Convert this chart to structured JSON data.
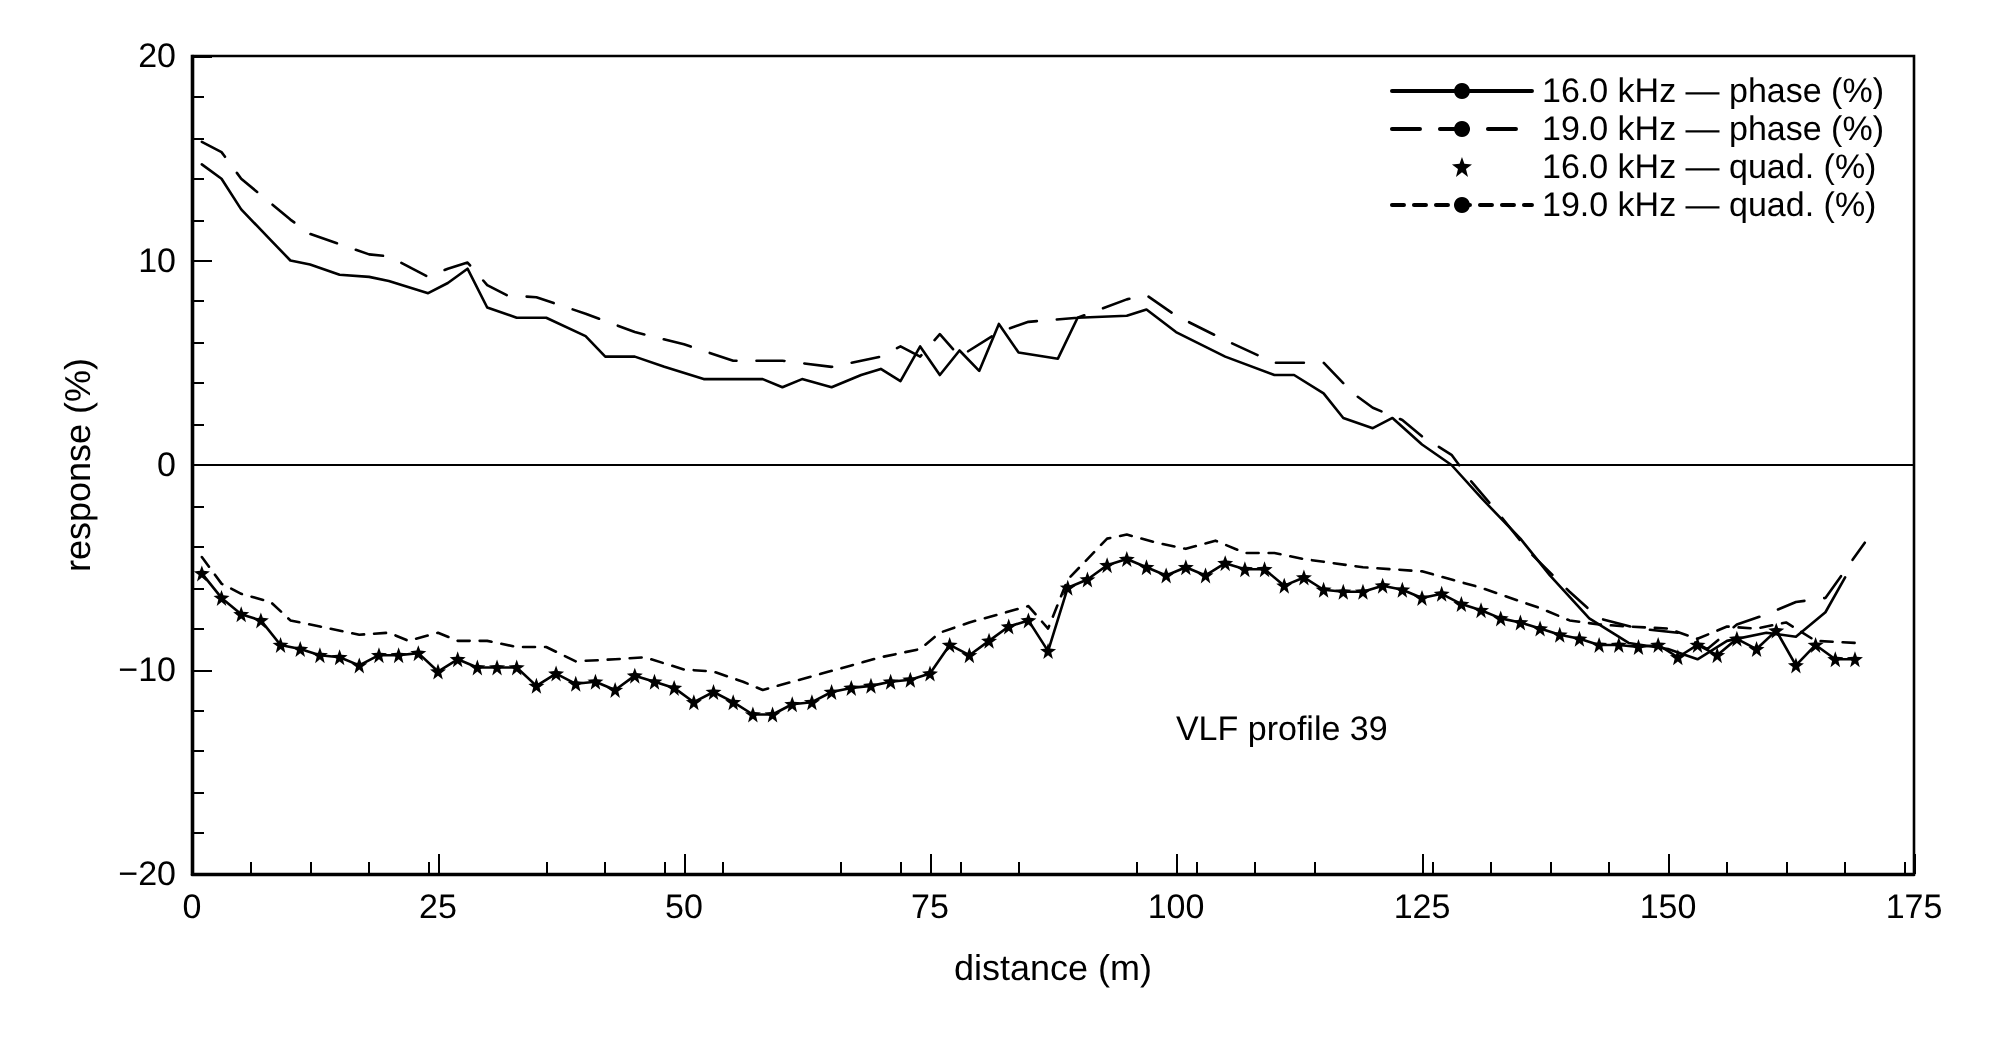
{
  "chart_data": {
    "type": "line",
    "xlabel": "distance (m)",
    "ylabel": "response (%)",
    "xlim": [
      0,
      175
    ],
    "xticks": [
      0,
      25,
      50,
      75,
      100,
      125,
      150,
      175
    ],
    "ylim": [
      -20,
      20
    ],
    "yticks": [
      -20,
      -10,
      0,
      10,
      20
    ],
    "grid": false,
    "legend": "top right",
    "annotations": [
      "VLF profile 39"
    ],
    "ref_lines": [
      {
        "axis": "y",
        "value": 0,
        "color": "#000000"
      }
    ],
    "series": [
      {
        "name": "16.0 kHz — phase (%)",
        "color": "#000000",
        "line_style": "solid",
        "marker": "none",
        "x": [
          1,
          3,
          5,
          8,
          10,
          12,
          15,
          18,
          20,
          24,
          26,
          28,
          30,
          33,
          36,
          40,
          42,
          45,
          48,
          52,
          55,
          58,
          60,
          62,
          65,
          68,
          70,
          72,
          74,
          76,
          78,
          80,
          82,
          84,
          88,
          90,
          95,
          97,
          100,
          105,
          110,
          112,
          115,
          117,
          120,
          122,
          125,
          128,
          131,
          135,
          138,
          142,
          146,
          150,
          153,
          156,
          160,
          163,
          166,
          168
        ],
        "values": [
          14.7,
          14,
          12.5,
          11,
          10,
          9.8,
          9.3,
          9.2,
          9,
          8.4,
          8.9,
          9.6,
          7.7,
          7.2,
          7.2,
          6.3,
          5.3,
          5.3,
          4.8,
          4.2,
          4.2,
          4.2,
          3.8,
          4.2,
          3.8,
          4.4,
          4.7,
          4.1,
          5.8,
          4.4,
          5.6,
          4.6,
          6.9,
          5.5,
          5.2,
          7.2,
          7.3,
          7.6,
          6.5,
          5.3,
          4.4,
          4.4,
          3.5,
          2.3,
          1.8,
          2.3,
          1,
          0,
          -1.6,
          -3.6,
          -5.4,
          -7.5,
          -8.7,
          -9,
          -9.5,
          -8.6,
          -8.2,
          -8.4,
          -7.2,
          -5.5
        ]
      },
      {
        "name": "19.0 kHz — phase (%)",
        "color": "#000000",
        "line_style": "dashed",
        "marker": "none",
        "x": [
          1,
          3,
          5,
          8,
          10,
          12,
          15,
          18,
          20,
          24,
          26,
          28,
          30,
          32,
          35,
          40,
          45,
          50,
          55,
          60,
          65,
          70,
          72,
          74,
          76,
          78,
          82,
          85,
          90,
          95,
          97,
          100,
          105,
          110,
          115,
          118,
          120,
          123,
          125,
          128,
          130,
          133,
          136,
          140,
          143,
          147,
          151,
          154,
          157,
          160,
          163,
          166,
          170
        ],
        "values": [
          15.8,
          15.3,
          14,
          12.8,
          12,
          11.3,
          10.8,
          10.3,
          10.2,
          9.2,
          9.6,
          9.9,
          8.8,
          8.3,
          8.2,
          7.4,
          6.5,
          5.9,
          5.1,
          5.1,
          4.8,
          5.3,
          5.8,
          5.3,
          6.4,
          5.3,
          6.5,
          7,
          7.2,
          8.1,
          8.3,
          7.3,
          6.1,
          5,
          5,
          3.5,
          2.8,
          2.2,
          1.4,
          0.5,
          -0.8,
          -2.5,
          -4.3,
          -6.2,
          -7.5,
          -8,
          -8.2,
          -9,
          -7.8,
          -7.3,
          -6.7,
          -6.5,
          -3.8
        ]
      },
      {
        "name": "16.0 kHz — quad. (%)",
        "color": "#000000",
        "line_style": "solid",
        "marker": "star",
        "x": [
          1,
          3,
          5,
          7,
          9,
          11,
          13,
          15,
          17,
          19,
          21,
          23,
          25,
          27,
          29,
          31,
          33,
          35,
          37,
          39,
          41,
          43,
          45,
          47,
          49,
          51,
          53,
          55,
          57,
          59,
          61,
          63,
          65,
          67,
          69,
          71,
          73,
          75,
          77,
          79,
          81,
          83,
          85,
          87,
          89,
          91,
          93,
          95,
          97,
          99,
          101,
          103,
          105,
          107,
          109,
          111,
          113,
          115,
          117,
          119,
          121,
          123,
          125,
          127,
          129,
          131,
          133,
          135,
          137,
          139,
          141,
          143,
          145,
          147,
          149,
          151,
          153,
          155,
          157,
          159,
          161,
          163,
          165,
          167,
          169
        ],
        "values": [
          -5.3,
          -6.5,
          -7.3,
          -7.6,
          -8.8,
          -9,
          -9.3,
          -9.4,
          -9.8,
          -9.3,
          -9.3,
          -9.2,
          -10.1,
          -9.5,
          -9.9,
          -9.9,
          -9.9,
          -10.8,
          -10.2,
          -10.7,
          -10.6,
          -11,
          -10.3,
          -10.6,
          -10.9,
          -11.6,
          -11.1,
          -11.6,
          -12.2,
          -12.2,
          -11.7,
          -11.6,
          -11.1,
          -10.9,
          -10.8,
          -10.6,
          -10.5,
          -10.2,
          -8.8,
          -9.3,
          -8.6,
          -7.9,
          -7.6,
          -9.1,
          -6,
          -5.6,
          -4.9,
          -4.6,
          -5,
          -5.4,
          -5,
          -5.4,
          -4.8,
          -5.1,
          -5.1,
          -5.9,
          -5.5,
          -6.1,
          -6.2,
          -6.2,
          -5.9,
          -6.1,
          -6.5,
          -6.3,
          -6.8,
          -7.1,
          -7.5,
          -7.7,
          -8,
          -8.3,
          -8.5,
          -8.8,
          -8.8,
          -8.9,
          -8.8,
          -9.4,
          -8.8,
          -9.3,
          -8.5,
          -9,
          -8.1,
          -9.8,
          -8.8,
          -9.5,
          -9.5
        ]
      },
      {
        "name": "19.0 kHz — quad. (%)",
        "color": "#000000",
        "line_style": "dotted",
        "marker": "none",
        "x": [
          1,
          3,
          5,
          8,
          10,
          13,
          17,
          20,
          22,
          25,
          27,
          30,
          33,
          36,
          39,
          43,
          46,
          50,
          53,
          56,
          58,
          61,
          64,
          67,
          70,
          74,
          76,
          79,
          82,
          85,
          87,
          89,
          91,
          93,
          95,
          98,
          101,
          104,
          107,
          110,
          113,
          116,
          119,
          122,
          125,
          128,
          131,
          134,
          137,
          140,
          143,
          146,
          150,
          153,
          156,
          159,
          162,
          165,
          169
        ],
        "values": [
          -4.5,
          -5.8,
          -6.3,
          -6.7,
          -7.6,
          -7.9,
          -8.3,
          -8.2,
          -8.6,
          -8.2,
          -8.6,
          -8.6,
          -8.9,
          -8.9,
          -9.6,
          -9.5,
          -9.4,
          -10,
          -10.1,
          -10.6,
          -11,
          -10.6,
          -10.2,
          -9.8,
          -9.4,
          -9,
          -8.2,
          -7.7,
          -7.3,
          -6.9,
          -8,
          -5.6,
          -4.6,
          -3.6,
          -3.4,
          -3.8,
          -4.1,
          -3.7,
          -4.3,
          -4.3,
          -4.6,
          -4.8,
          -5,
          -5.1,
          -5.2,
          -5.6,
          -6,
          -6.5,
          -7,
          -7.6,
          -7.8,
          -7.9,
          -8,
          -8.5,
          -7.9,
          -8,
          -7.7,
          -8.6,
          -8.7
        ]
      }
    ]
  }
}
